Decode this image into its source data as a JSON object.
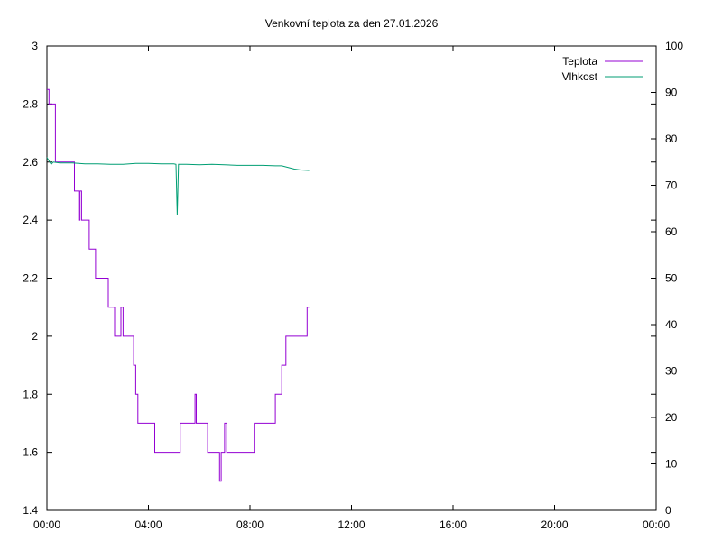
{
  "chart_data": {
    "type": "line",
    "title": "Venkovní teplota za den 27.01.2026",
    "xlabel": "",
    "ylabel": "",
    "y2label": "",
    "xlim": [
      "00:00",
      "24:00"
    ],
    "x_ticks": [
      "00:00",
      "04:00",
      "08:00",
      "12:00",
      "16:00",
      "20:00",
      "00:00"
    ],
    "ylim": [
      1.4,
      3.0
    ],
    "y_ticks": [
      "1.4",
      "1.6",
      "1.8",
      "2",
      "2.2",
      "2.4",
      "2.6",
      "2.8",
      "3"
    ],
    "y2lim": [
      0,
      100
    ],
    "y2_ticks": [
      "0",
      "10",
      "20",
      "30",
      "40",
      "50",
      "60",
      "70",
      "80",
      "90",
      "100"
    ],
    "grid": false,
    "legend_position": "top-right",
    "series": [
      {
        "name": "Teplota",
        "axis": "left",
        "color": "#9400d3",
        "step": true,
        "points": [
          [
            "00:00",
            2.85
          ],
          [
            "00:05",
            2.8
          ],
          [
            "00:20",
            2.6
          ],
          [
            "00:30",
            2.6
          ],
          [
            "01:00",
            2.6
          ],
          [
            "01:05",
            2.5
          ],
          [
            "01:15",
            2.4
          ],
          [
            "01:18",
            2.5
          ],
          [
            "01:22",
            2.4
          ],
          [
            "01:30",
            2.4
          ],
          [
            "01:40",
            2.3
          ],
          [
            "01:55",
            2.2
          ],
          [
            "02:25",
            2.1
          ],
          [
            "02:35",
            2.1
          ],
          [
            "02:40",
            2.0
          ],
          [
            "02:55",
            2.1
          ],
          [
            "03:00",
            2.0
          ],
          [
            "03:25",
            1.9
          ],
          [
            "03:30",
            1.8
          ],
          [
            "03:35",
            1.7
          ],
          [
            "04:15",
            1.6
          ],
          [
            "05:15",
            1.7
          ],
          [
            "05:50",
            1.8
          ],
          [
            "05:53",
            1.7
          ],
          [
            "06:20",
            1.6
          ],
          [
            "06:48",
            1.5
          ],
          [
            "06:52",
            1.6
          ],
          [
            "07:00",
            1.7
          ],
          [
            "07:05",
            1.6
          ],
          [
            "08:10",
            1.7
          ],
          [
            "09:00",
            1.8
          ],
          [
            "09:15",
            1.9
          ],
          [
            "09:25",
            2.0
          ],
          [
            "10:15",
            2.1
          ],
          [
            "10:20",
            2.1
          ]
        ]
      },
      {
        "name": "Vlhkost",
        "axis": "right",
        "color": "#009e73",
        "step": false,
        "points": [
          [
            "00:00",
            76.0
          ],
          [
            "00:10",
            74.5
          ],
          [
            "00:15",
            75.0
          ],
          [
            "00:30",
            74.8
          ],
          [
            "01:00",
            74.8
          ],
          [
            "01:30",
            74.6
          ],
          [
            "02:00",
            74.6
          ],
          [
            "02:30",
            74.5
          ],
          [
            "03:00",
            74.5
          ],
          [
            "03:30",
            74.7
          ],
          [
            "04:00",
            74.7
          ],
          [
            "04:30",
            74.6
          ],
          [
            "05:00",
            74.6
          ],
          [
            "05:05",
            74.5
          ],
          [
            "05:08",
            63.5
          ],
          [
            "05:11",
            74.5
          ],
          [
            "05:30",
            74.5
          ],
          [
            "06:00",
            74.4
          ],
          [
            "06:30",
            74.5
          ],
          [
            "07:00",
            74.4
          ],
          [
            "07:30",
            74.3
          ],
          [
            "08:00",
            74.3
          ],
          [
            "08:30",
            74.3
          ],
          [
            "09:00",
            74.2
          ],
          [
            "09:15",
            74.2
          ],
          [
            "09:45",
            73.5
          ],
          [
            "10:00",
            73.3
          ],
          [
            "10:20",
            73.2
          ]
        ]
      }
    ]
  }
}
